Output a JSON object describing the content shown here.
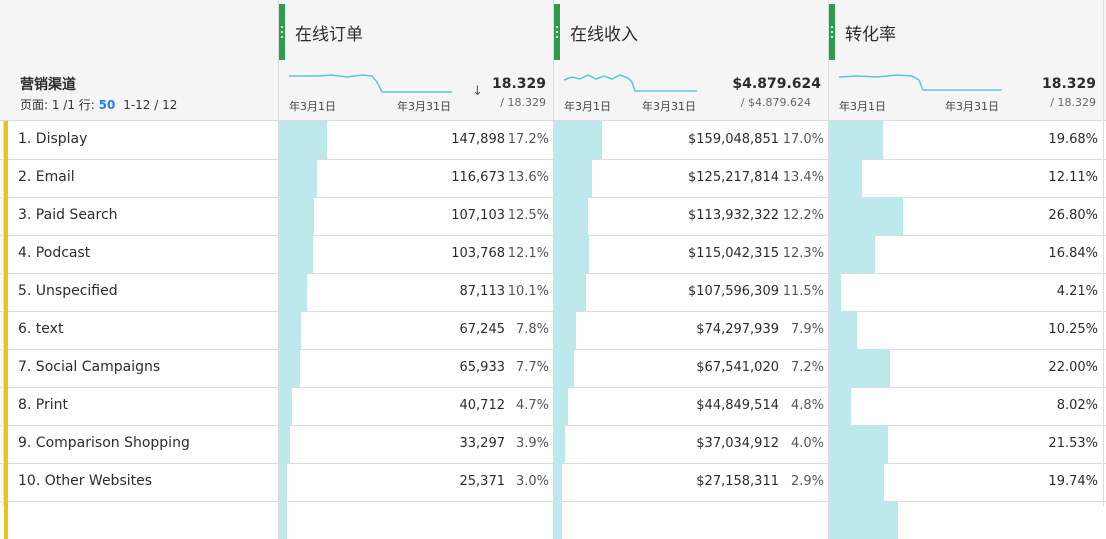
{
  "dimension": {
    "title": "营销渠道",
    "page_label": "页面: 1 /1 行:",
    "rows_per_page": "50",
    "range": "1-12 / 12"
  },
  "metrics": [
    {
      "title": "在线订单",
      "trend": "down",
      "summary": "18.329",
      "total": "/ 18.329",
      "date_start": "年3月1日",
      "date_end": "年3月31日"
    },
    {
      "title": "在线收入",
      "summary": "$4.879.624",
      "total": "/ $4.879.624",
      "date_start": "年3月1日",
      "date_end": "年3月31日"
    },
    {
      "title": "转化率",
      "summary": "18.329",
      "total": "/ 18.329",
      "date_start": "年3月1日",
      "date_end": "年3月31日"
    }
  ],
  "rows": [
    {
      "label": "1. Display",
      "orders": "147,898",
      "orders_pct": "17.2%",
      "revenue": "$159,048,851",
      "revenue_pct": "17.0%",
      "conv": "19.68%"
    },
    {
      "label": "2. Email",
      "orders": "116,673",
      "orders_pct": "13.6%",
      "revenue": "$125,217,814",
      "revenue_pct": "13.4%",
      "conv": "12.11%"
    },
    {
      "label": "3. Paid Search",
      "orders": "107,103",
      "orders_pct": "12.5%",
      "revenue": "$113,932,322",
      "revenue_pct": "12.2%",
      "conv": "26.80%"
    },
    {
      "label": "4. Podcast",
      "orders": "103,768",
      "orders_pct": "12.1%",
      "revenue": "$115,042,315",
      "revenue_pct": "12.3%",
      "conv": "16.84%"
    },
    {
      "label": "5. Unspecified",
      "orders": "87,113",
      "orders_pct": "10.1%",
      "revenue": "$107,596,309",
      "revenue_pct": "11.5%",
      "conv": "4.21%"
    },
    {
      "label": "6. text",
      "orders": "67,245",
      "orders_pct": "7.8%",
      "revenue": "$74,297,939",
      "revenue_pct": "7.9%",
      "conv": "10.25%"
    },
    {
      "label": "7. Social Campaigns",
      "orders": "65,933",
      "orders_pct": "7.7%",
      "revenue": "$67,541,020",
      "revenue_pct": "7.2%",
      "conv": "22.00%"
    },
    {
      "label": "8. Print",
      "orders": "40,712",
      "orders_pct": "4.7%",
      "revenue": "$44,849,514",
      "revenue_pct": "4.8%",
      "conv": "8.02%"
    },
    {
      "label": "9. Comparison Shopping",
      "orders": "33,297",
      "orders_pct": "3.9%",
      "revenue": "$37,034,912",
      "revenue_pct": "4.0%",
      "conv": "21.53%"
    },
    {
      "label": "10. Other Websites",
      "orders": "25,371",
      "orders_pct": "3.0%",
      "revenue": "$27,158,311",
      "revenue_pct": "2.9%",
      "conv": "19.74%"
    }
  ],
  "partial_row_conv_bar": 0.25,
  "colors": {
    "bar": "#bde9ec",
    "accent": "#e6c619",
    "grip": "#2d9d4d",
    "sparkline": "#5bc8d3"
  }
}
